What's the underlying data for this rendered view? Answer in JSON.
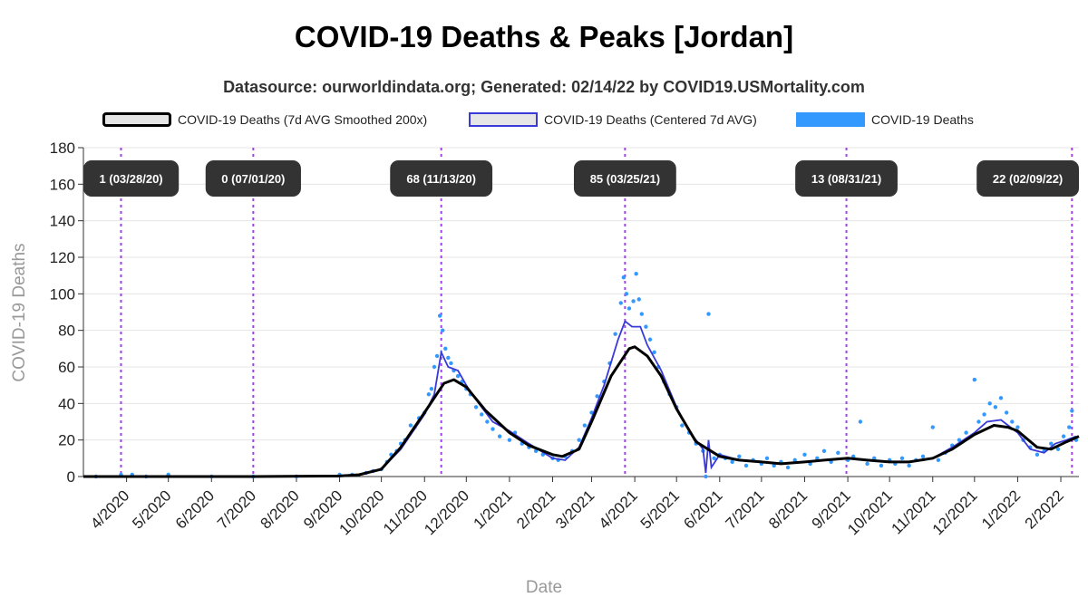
{
  "chart_data": {
    "type": "line",
    "title": "COVID-19 Deaths & Peaks [Jordan]",
    "subtitle": "Datasource: ourworldindata.org; Generated: 02/14/22 by COVID19.USMortality.com",
    "xlabel": "Date",
    "ylabel": "COVID-19 Deaths",
    "ylim": [
      0,
      180
    ],
    "yticks": [
      0,
      20,
      40,
      60,
      80,
      100,
      120,
      140,
      160,
      180
    ],
    "xlim": [
      "2020-03-01",
      "2022-02-14"
    ],
    "xticks": [
      {
        "label": "4/2020",
        "date": "2020-04-01"
      },
      {
        "label": "5/2020",
        "date": "2020-05-01"
      },
      {
        "label": "6/2020",
        "date": "2020-06-01"
      },
      {
        "label": "7/2020",
        "date": "2020-07-01"
      },
      {
        "label": "8/2020",
        "date": "2020-08-01"
      },
      {
        "label": "9/2020",
        "date": "2020-09-01"
      },
      {
        "label": "10/2020",
        "date": "2020-10-01"
      },
      {
        "label": "11/2020",
        "date": "2020-11-01"
      },
      {
        "label": "12/2020",
        "date": "2020-12-01"
      },
      {
        "label": "1/2021",
        "date": "2021-01-01"
      },
      {
        "label": "2/2021",
        "date": "2021-02-01"
      },
      {
        "label": "3/2021",
        "date": "2021-03-01"
      },
      {
        "label": "4/2021",
        "date": "2021-04-01"
      },
      {
        "label": "5/2021",
        "date": "2021-05-01"
      },
      {
        "label": "6/2021",
        "date": "2021-06-01"
      },
      {
        "label": "7/2021",
        "date": "2021-07-01"
      },
      {
        "label": "8/2021",
        "date": "2021-08-01"
      },
      {
        "label": "9/2021",
        "date": "2021-09-01"
      },
      {
        "label": "10/2021",
        "date": "2021-10-01"
      },
      {
        "label": "11/2021",
        "date": "2021-11-01"
      },
      {
        "label": "12/2021",
        "date": "2021-12-01"
      },
      {
        "label": "1/2022",
        "date": "2022-01-01"
      },
      {
        "label": "2/2022",
        "date": "2022-02-01"
      }
    ],
    "grid": true,
    "legend_position": "top",
    "legend": [
      {
        "label": "COVID-19 Deaths (7d AVG Smoothed 200x)",
        "style": "smooth"
      },
      {
        "label": "COVID-19 Deaths (Centered 7d AVG)",
        "style": "avg"
      },
      {
        "label": "COVID-19 Deaths",
        "style": "raw"
      }
    ],
    "peaks": [
      {
        "label": "1 (03/28/20)",
        "date": "2020-03-28",
        "value": 1
      },
      {
        "label": "0 (07/01/20)",
        "date": "2020-07-01",
        "value": 0
      },
      {
        "label": "68 (11/13/20)",
        "date": "2020-11-13",
        "value": 68
      },
      {
        "label": "85 (03/25/21)",
        "date": "2021-03-25",
        "value": 85
      },
      {
        "label": "13 (08/31/21)",
        "date": "2021-08-31",
        "value": 13
      },
      {
        "label": "22 (02/09/22)",
        "date": "2022-02-09",
        "value": 22
      }
    ],
    "series": [
      {
        "name": "COVID-19 Deaths (7d AVG Smoothed 200x)",
        "color": "#000000",
        "points": [
          [
            "2020-03-01",
            0
          ],
          [
            "2020-05-01",
            0
          ],
          [
            "2020-07-01",
            0
          ],
          [
            "2020-09-01",
            0.3
          ],
          [
            "2020-09-15",
            1
          ],
          [
            "2020-10-01",
            4
          ],
          [
            "2020-10-15",
            16
          ],
          [
            "2020-11-01",
            35
          ],
          [
            "2020-11-15",
            51
          ],
          [
            "2020-11-22",
            53
          ],
          [
            "2020-12-01",
            49
          ],
          [
            "2020-12-15",
            36
          ],
          [
            "2021-01-01",
            24
          ],
          [
            "2021-01-15",
            17
          ],
          [
            "2021-02-01",
            12
          ],
          [
            "2021-02-08",
            11
          ],
          [
            "2021-02-20",
            15
          ],
          [
            "2021-03-01",
            30
          ],
          [
            "2021-03-15",
            55
          ],
          [
            "2021-03-28",
            70
          ],
          [
            "2021-04-01",
            71
          ],
          [
            "2021-04-10",
            66
          ],
          [
            "2021-04-20",
            55
          ],
          [
            "2021-05-01",
            37
          ],
          [
            "2021-05-15",
            19
          ],
          [
            "2021-06-01",
            11
          ],
          [
            "2021-06-15",
            9
          ],
          [
            "2021-07-01",
            8
          ],
          [
            "2021-07-15",
            7
          ],
          [
            "2021-08-01",
            8
          ],
          [
            "2021-08-15",
            9
          ],
          [
            "2021-09-01",
            10
          ],
          [
            "2021-09-15",
            9
          ],
          [
            "2021-10-01",
            8
          ],
          [
            "2021-10-15",
            8
          ],
          [
            "2021-11-01",
            10
          ],
          [
            "2021-11-15",
            15
          ],
          [
            "2021-12-01",
            23
          ],
          [
            "2021-12-15",
            28
          ],
          [
            "2021-12-25",
            27
          ],
          [
            "2022-01-01",
            25
          ],
          [
            "2022-01-15",
            16
          ],
          [
            "2022-01-25",
            15
          ],
          [
            "2022-02-05",
            19
          ],
          [
            "2022-02-14",
            22
          ]
        ]
      },
      {
        "name": "COVID-19 Deaths (Centered 7d AVG)",
        "color": "#3a3ad8",
        "points": [
          [
            "2020-03-01",
            0
          ],
          [
            "2020-08-31",
            0
          ],
          [
            "2020-09-15",
            1
          ],
          [
            "2020-10-01",
            4
          ],
          [
            "2020-10-15",
            15
          ],
          [
            "2020-11-01",
            34
          ],
          [
            "2020-11-08",
            45
          ],
          [
            "2020-11-13",
            68
          ],
          [
            "2020-11-18",
            60
          ],
          [
            "2020-11-25",
            58
          ],
          [
            "2020-12-01",
            50
          ],
          [
            "2020-12-10",
            40
          ],
          [
            "2020-12-20",
            30
          ],
          [
            "2021-01-01",
            25
          ],
          [
            "2021-01-15",
            18
          ],
          [
            "2021-02-01",
            10
          ],
          [
            "2021-02-10",
            9
          ],
          [
            "2021-02-20",
            16
          ],
          [
            "2021-03-01",
            32
          ],
          [
            "2021-03-10",
            50
          ],
          [
            "2021-03-20",
            75
          ],
          [
            "2021-03-25",
            85
          ],
          [
            "2021-03-30",
            82
          ],
          [
            "2021-04-05",
            82
          ],
          [
            "2021-04-10",
            72
          ],
          [
            "2021-04-20",
            58
          ],
          [
            "2021-05-01",
            38
          ],
          [
            "2021-05-10",
            25
          ],
          [
            "2021-05-20",
            15
          ],
          [
            "2021-05-22",
            2
          ],
          [
            "2021-05-24",
            20
          ],
          [
            "2021-05-26",
            5
          ],
          [
            "2021-06-01",
            12
          ],
          [
            "2021-06-15",
            9
          ],
          [
            "2021-07-01",
            8
          ],
          [
            "2021-07-15",
            7
          ],
          [
            "2021-08-01",
            8
          ],
          [
            "2021-08-15",
            9
          ],
          [
            "2021-09-01",
            10
          ],
          [
            "2021-09-15",
            9
          ],
          [
            "2021-10-01",
            8
          ],
          [
            "2021-10-15",
            8
          ],
          [
            "2021-11-01",
            10
          ],
          [
            "2021-11-15",
            16
          ],
          [
            "2021-12-01",
            24
          ],
          [
            "2021-12-10",
            30
          ],
          [
            "2021-12-20",
            31
          ],
          [
            "2022-01-01",
            24
          ],
          [
            "2022-01-10",
            15
          ],
          [
            "2022-01-20",
            13
          ],
          [
            "2022-01-28",
            18
          ],
          [
            "2022-02-05",
            20
          ],
          [
            "2022-02-12",
            22
          ]
        ]
      },
      {
        "name": "COVID-19 Deaths",
        "color": "#3399ff",
        "points": [
          [
            "2020-03-10",
            0
          ],
          [
            "2020-03-28",
            1
          ],
          [
            "2020-04-05",
            1
          ],
          [
            "2020-04-15",
            0
          ],
          [
            "2020-05-01",
            1
          ],
          [
            "2020-06-01",
            0
          ],
          [
            "2020-07-01",
            0
          ],
          [
            "2020-08-01",
            0
          ],
          [
            "2020-09-01",
            1
          ],
          [
            "2020-09-10",
            1
          ],
          [
            "2020-09-20",
            2
          ],
          [
            "2020-09-25",
            3
          ],
          [
            "2020-10-01",
            4
          ],
          [
            "2020-10-05",
            8
          ],
          [
            "2020-10-08",
            12
          ],
          [
            "2020-10-12",
            14
          ],
          [
            "2020-10-15",
            18
          ],
          [
            "2020-10-18",
            20
          ],
          [
            "2020-10-22",
            28
          ],
          [
            "2020-10-25",
            27
          ],
          [
            "2020-10-28",
            32
          ],
          [
            "2020-11-01",
            35
          ],
          [
            "2020-11-04",
            45
          ],
          [
            "2020-11-06",
            48
          ],
          [
            "2020-11-08",
            60
          ],
          [
            "2020-11-10",
            66
          ],
          [
            "2020-11-12",
            88
          ],
          [
            "2020-11-14",
            80
          ],
          [
            "2020-11-16",
            70
          ],
          [
            "2020-11-18",
            65
          ],
          [
            "2020-11-20",
            62
          ],
          [
            "2020-11-22",
            58
          ],
          [
            "2020-11-25",
            55
          ],
          [
            "2020-11-28",
            52
          ],
          [
            "2020-12-01",
            48
          ],
          [
            "2020-12-04",
            45
          ],
          [
            "2020-12-08",
            38
          ],
          [
            "2020-12-12",
            34
          ],
          [
            "2020-12-16",
            30
          ],
          [
            "2020-12-20",
            26
          ],
          [
            "2020-12-25",
            22
          ],
          [
            "2021-01-01",
            20
          ],
          [
            "2021-01-05",
            24
          ],
          [
            "2021-01-10",
            18
          ],
          [
            "2021-01-15",
            16
          ],
          [
            "2021-01-20",
            14
          ],
          [
            "2021-01-25",
            12
          ],
          [
            "2021-02-01",
            10
          ],
          [
            "2021-02-05",
            9
          ],
          [
            "2021-02-10",
            11
          ],
          [
            "2021-02-15",
            14
          ],
          [
            "2021-02-20",
            20
          ],
          [
            "2021-02-24",
            28
          ],
          [
            "2021-03-01",
            35
          ],
          [
            "2021-03-05",
            44
          ],
          [
            "2021-03-10",
            52
          ],
          [
            "2021-03-14",
            62
          ],
          [
            "2021-03-18",
            78
          ],
          [
            "2021-03-22",
            95
          ],
          [
            "2021-03-24",
            109
          ],
          [
            "2021-03-26",
            100
          ],
          [
            "2021-03-28",
            92
          ],
          [
            "2021-03-31",
            96
          ],
          [
            "2021-04-02",
            111
          ],
          [
            "2021-04-04",
            97
          ],
          [
            "2021-04-06",
            89
          ],
          [
            "2021-04-09",
            82
          ],
          [
            "2021-04-12",
            75
          ],
          [
            "2021-04-15",
            68
          ],
          [
            "2021-04-18",
            60
          ],
          [
            "2021-04-22",
            52
          ],
          [
            "2021-04-26",
            45
          ],
          [
            "2021-05-01",
            38
          ],
          [
            "2021-05-05",
            28
          ],
          [
            "2021-05-10",
            24
          ],
          [
            "2021-05-15",
            18
          ],
          [
            "2021-05-20",
            14
          ],
          [
            "2021-05-22",
            0
          ],
          [
            "2021-05-24",
            89
          ],
          [
            "2021-05-28",
            10
          ],
          [
            "2021-06-01",
            12
          ],
          [
            "2021-06-05",
            10
          ],
          [
            "2021-06-10",
            8
          ],
          [
            "2021-06-15",
            11
          ],
          [
            "2021-06-20",
            6
          ],
          [
            "2021-06-25",
            9
          ],
          [
            "2021-07-01",
            7
          ],
          [
            "2021-07-05",
            10
          ],
          [
            "2021-07-10",
            6
          ],
          [
            "2021-07-15",
            8
          ],
          [
            "2021-07-20",
            5
          ],
          [
            "2021-07-25",
            9
          ],
          [
            "2021-08-01",
            12
          ],
          [
            "2021-08-05",
            7
          ],
          [
            "2021-08-10",
            10
          ],
          [
            "2021-08-15",
            14
          ],
          [
            "2021-08-20",
            8
          ],
          [
            "2021-08-25",
            13
          ],
          [
            "2021-09-01",
            9
          ],
          [
            "2021-09-05",
            11
          ],
          [
            "2021-09-10",
            30
          ],
          [
            "2021-09-15",
            7
          ],
          [
            "2021-09-20",
            10
          ],
          [
            "2021-09-25",
            6
          ],
          [
            "2021-10-01",
            9
          ],
          [
            "2021-10-05",
            7
          ],
          [
            "2021-10-10",
            10
          ],
          [
            "2021-10-15",
            6
          ],
          [
            "2021-10-20",
            9
          ],
          [
            "2021-10-25",
            11
          ],
          [
            "2021-11-01",
            27
          ],
          [
            "2021-11-05",
            9
          ],
          [
            "2021-11-10",
            13
          ],
          [
            "2021-11-15",
            17
          ],
          [
            "2021-11-20",
            20
          ],
          [
            "2021-11-25",
            24
          ],
          [
            "2021-12-01",
            53
          ],
          [
            "2021-12-04",
            30
          ],
          [
            "2021-12-08",
            34
          ],
          [
            "2021-12-12",
            40
          ],
          [
            "2021-12-16",
            38
          ],
          [
            "2021-12-20",
            43
          ],
          [
            "2021-12-24",
            35
          ],
          [
            "2021-12-28",
            30
          ],
          [
            "2022-01-01",
            27
          ],
          [
            "2022-01-05",
            20
          ],
          [
            "2022-01-10",
            16
          ],
          [
            "2022-01-15",
            12
          ],
          [
            "2022-01-20",
            14
          ],
          [
            "2022-01-25",
            18
          ],
          [
            "2022-01-30",
            15
          ],
          [
            "2022-02-03",
            22
          ],
          [
            "2022-02-07",
            27
          ],
          [
            "2022-02-09",
            36
          ],
          [
            "2022-02-12",
            20
          ]
        ]
      }
    ]
  }
}
